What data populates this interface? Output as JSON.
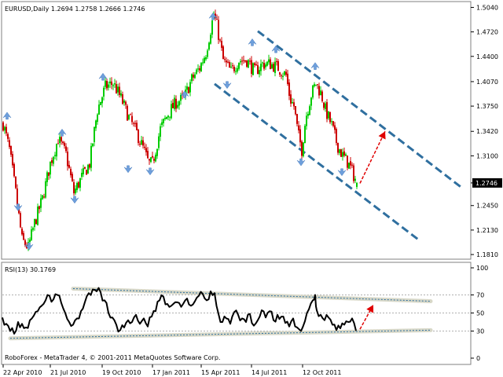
{
  "main_header": "EURUSD,Daily  1.2694 1.2758 1.2666 1.2746",
  "rsi_header": "RSI(13) 30.1769",
  "copyright": "RoboForex - MetaTrader 4, © 2001-2011 MetaQuotes Software Corp.",
  "current_price_tag": "1.2746",
  "colors": {
    "bull": "#00cc00",
    "bear": "#cc0000",
    "fractal": "#6e9fdc",
    "channel": "#2f6f9f",
    "arrow": "#e00000",
    "rsi": "#000000",
    "rsi_band": "#d8d8c8",
    "price_tag_bg": "#000000"
  },
  "x_tick_labels": [
    "22 Apr 2010",
    "21 Jul 2010",
    "19 Oct 2010",
    "17 Jan 2011",
    "15 Apr 2011",
    "14 Jul 2011",
    "12 Oct 2011"
  ],
  "chart_data": [
    {
      "type": "candlestick",
      "title": "EURUSD,Daily",
      "ohlc_last": {
        "open": 1.2694,
        "high": 1.2758,
        "low": 1.2666,
        "close": 1.2746
      },
      "x_tick_labels": [
        "22 Apr 2010",
        "21 Jul 2010",
        "19 Oct 2010",
        "17 Jan 2011",
        "15 Apr 2011",
        "14 Jul 2011",
        "12 Oct 2011"
      ],
      "y_tick_labels": [
        "1.5040",
        "1.4720",
        "1.4400",
        "1.4070",
        "1.3750",
        "1.3420",
        "1.3100",
        "1.2746",
        "1.2450",
        "1.2130",
        "1.1810"
      ],
      "ylim": [
        1.178,
        1.5065
      ],
      "close_path": [
        [
          0,
          1.352
        ],
        [
          8,
          1.318
        ],
        [
          16,
          1.262
        ],
        [
          24,
          1.2
        ],
        [
          32,
          1.19
        ],
        [
          40,
          1.222
        ],
        [
          50,
          1.254
        ],
        [
          60,
          1.3
        ],
        [
          70,
          1.332
        ],
        [
          80,
          1.312
        ],
        [
          90,
          1.262
        ],
        [
          100,
          1.282
        ],
        [
          110,
          1.3
        ],
        [
          120,
          1.37
        ],
        [
          130,
          1.4
        ],
        [
          140,
          1.405
        ],
        [
          150,
          1.385
        ],
        [
          160,
          1.36
        ],
        [
          170,
          1.34
        ],
        [
          180,
          1.315
        ],
        [
          185,
          1.3
        ],
        [
          190,
          1.3
        ],
        [
          200,
          1.345
        ],
        [
          210,
          1.365
        ],
        [
          220,
          1.38
        ],
        [
          230,
          1.385
        ],
        [
          240,
          1.41
        ],
        [
          250,
          1.425
        ],
        [
          258,
          1.445
        ],
        [
          264,
          1.475
        ],
        [
          268,
          1.495
        ],
        [
          272,
          1.48
        ],
        [
          280,
          1.435
        ],
        [
          290,
          1.42
        ],
        [
          300,
          1.435
        ],
        [
          310,
          1.435
        ],
        [
          320,
          1.42
        ],
        [
          330,
          1.43
        ],
        [
          340,
          1.43
        ],
        [
          350,
          1.425
        ],
        [
          360,
          1.415
        ],
        [
          365,
          1.385
        ],
        [
          370,
          1.375
        ],
        [
          375,
          1.34
        ],
        [
          380,
          1.318
        ],
        [
          385,
          1.36
        ],
        [
          392,
          1.39
        ],
        [
          398,
          1.405
        ],
        [
          405,
          1.39
        ],
        [
          410,
          1.37
        ],
        [
          418,
          1.35
        ],
        [
          425,
          1.325
        ],
        [
          432,
          1.31
        ],
        [
          438,
          1.302
        ],
        [
          444,
          1.29
        ],
        [
          450,
          1.2746
        ]
      ],
      "fractals": [
        {
          "x": 6,
          "price": 1.367,
          "dir": "up"
        },
        {
          "x": 20,
          "price": 1.238,
          "dir": "down"
        },
        {
          "x": 34,
          "price": 1.187,
          "dir": "down"
        },
        {
          "x": 76,
          "price": 1.345,
          "dir": "up"
        },
        {
          "x": 92,
          "price": 1.248,
          "dir": "down"
        },
        {
          "x": 128,
          "price": 1.418,
          "dir": "up"
        },
        {
          "x": 160,
          "price": 1.288,
          "dir": "down"
        },
        {
          "x": 188,
          "price": 1.285,
          "dir": "down"
        },
        {
          "x": 232,
          "price": 1.395,
          "dir": "up"
        },
        {
          "x": 268,
          "price": 1.497,
          "dir": "up"
        },
        {
          "x": 286,
          "price": 1.398,
          "dir": "down"
        },
        {
          "x": 318,
          "price": 1.463,
          "dir": "up"
        },
        {
          "x": 348,
          "price": 1.454,
          "dir": "up"
        },
        {
          "x": 380,
          "price": 1.297,
          "dir": "down"
        },
        {
          "x": 398,
          "price": 1.432,
          "dir": "up"
        },
        {
          "x": 432,
          "price": 1.284,
          "dir": "down"
        }
      ],
      "channel_lines": [
        {
          "from": [
            270,
            1.404
          ],
          "to": [
            530,
            1.2
          ],
          "style": "dashed"
        },
        {
          "from": [
            325,
            1.473
          ],
          "to": [
            585,
            1.268
          ],
          "style": "dashed"
        }
      ],
      "forecast_arrow": {
        "from": [
          455,
          1.274
        ],
        "to": [
          487,
          1.342
        ],
        "style": "dashed"
      }
    },
    {
      "type": "line",
      "title": "RSI(13)",
      "last_value": 30.1769,
      "x_tick_labels": [
        "22 Apr 2010",
        "21 Jul 2010",
        "19 Oct 2010",
        "17 Jan 2011",
        "15 Apr 2011",
        "14 Jul 2011",
        "12 Oct 2011"
      ],
      "y_tick_labels": [
        "100",
        "70",
        "50",
        "30",
        "0"
      ],
      "ylim": [
        0,
        100
      ],
      "reference_levels": [
        70,
        50,
        30
      ],
      "series": [
        {
          "values": [
            [
              0,
              45
            ],
            [
              5,
              38
            ],
            [
              10,
              30
            ],
            [
              15,
              27
            ],
            [
              20,
              40
            ],
            [
              25,
              38
            ],
            [
              30,
              34
            ],
            [
              35,
              42
            ],
            [
              40,
              47
            ],
            [
              45,
              52
            ],
            [
              50,
              58
            ],
            [
              55,
              64
            ],
            [
              60,
              69
            ],
            [
              65,
              65
            ],
            [
              70,
              70
            ],
            [
              75,
              61
            ],
            [
              80,
              50
            ],
            [
              85,
              40
            ],
            [
              90,
              37
            ],
            [
              95,
              44
            ],
            [
              100,
              52
            ],
            [
              105,
              62
            ],
            [
              110,
              72
            ],
            [
              115,
              76
            ],
            [
              120,
              74
            ],
            [
              125,
              73
            ],
            [
              130,
              64
            ],
            [
              135,
              50
            ],
            [
              140,
              45
            ],
            [
              145,
              37
            ],
            [
              150,
              31
            ],
            [
              155,
              34
            ],
            [
              160,
              42
            ],
            [
              165,
              40
            ],
            [
              170,
              48
            ],
            [
              175,
              38
            ],
            [
              180,
              44
            ],
            [
              185,
              35
            ],
            [
              190,
              46
            ],
            [
              195,
              52
            ],
            [
              200,
              64
            ],
            [
              205,
              68
            ],
            [
              210,
              60
            ],
            [
              215,
              58
            ],
            [
              220,
              62
            ],
            [
              225,
              61
            ],
            [
              230,
              60
            ],
            [
              235,
              66
            ],
            [
              240,
              58
            ],
            [
              245,
              63
            ],
            [
              250,
              69
            ],
            [
              255,
              71
            ],
            [
              260,
              64
            ],
            [
              265,
              74
            ],
            [
              270,
              72
            ],
            [
              275,
              49
            ],
            [
              280,
              40
            ],
            [
              285,
              44
            ],
            [
              290,
              38
            ],
            [
              295,
              51
            ],
            [
              300,
              48
            ],
            [
              305,
              44
            ],
            [
              310,
              40
            ],
            [
              315,
              49
            ],
            [
              320,
              36
            ],
            [
              325,
              42
            ],
            [
              330,
              53
            ],
            [
              335,
              45
            ],
            [
              340,
              52
            ],
            [
              345,
              42
            ],
            [
              350,
              48
            ],
            [
              355,
              46
            ],
            [
              360,
              39
            ],
            [
              365,
              35
            ],
            [
              370,
              44
            ],
            [
              375,
              34
            ],
            [
              380,
              30
            ],
            [
              385,
              41
            ],
            [
              390,
              54
            ],
            [
              395,
              64
            ],
            [
              398,
              70
            ],
            [
              400,
              53
            ],
            [
              405,
              48
            ],
            [
              410,
              42
            ],
            [
              415,
              45
            ],
            [
              420,
              37
            ],
            [
              425,
              31
            ],
            [
              430,
              33
            ],
            [
              435,
              37
            ],
            [
              440,
              40
            ],
            [
              445,
              44
            ],
            [
              450,
              30.1769
            ]
          ]
        }
      ],
      "band_lines": [
        {
          "from": [
            90,
            77
          ],
          "to": [
            545,
            63
          ]
        },
        {
          "from": [
            10,
            22
          ],
          "to": [
            545,
            31
          ]
        }
      ],
      "forecast_arrow": {
        "from": [
          455,
          32
        ],
        "to": [
          472,
          59
        ],
        "style": "dashed"
      }
    }
  ]
}
